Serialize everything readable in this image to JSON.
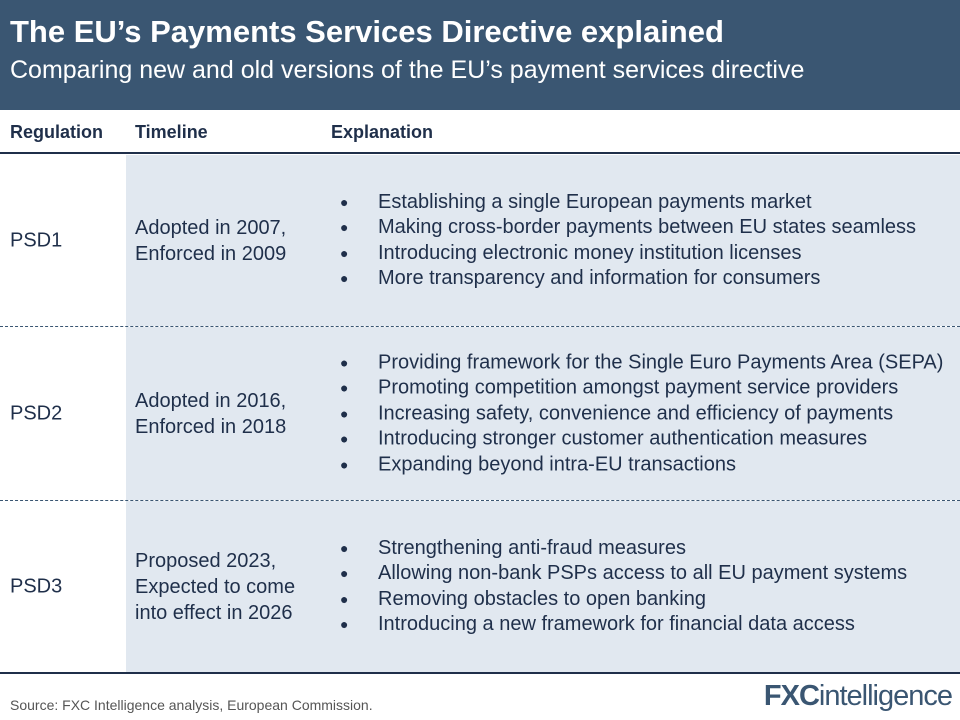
{
  "header": {
    "title": "The EU’s Payments Services Directive explained",
    "subtitle": "Comparing new and old versions of the EU’s payment services directive"
  },
  "columns": {
    "regulation": "Regulation",
    "timeline": "Timeline",
    "explanation": "Explanation"
  },
  "rows": [
    {
      "regulation": "PSD1",
      "timeline": [
        "Adopted in 2007,",
        "Enforced in 2009"
      ],
      "points": [
        "Establishing a single European payments market",
        "Making cross-border payments between EU states seamless",
        "Introducing electronic money institution licenses",
        "More transparency and information for consumers"
      ]
    },
    {
      "regulation": "PSD2",
      "timeline": [
        "Adopted in 2016,",
        "Enforced in 2018"
      ],
      "points": [
        "Providing framework for the Single Euro Payments Area (SEPA)",
        "Promoting competition amongst payment service providers",
        "Increasing safety, convenience and efficiency of payments",
        "Introducing stronger customer authentication measures",
        "Expanding beyond intra-EU transactions"
      ]
    },
    {
      "regulation": "PSD3",
      "timeline": [
        "Proposed 2023,",
        "Expected to come",
        "into effect in 2026"
      ],
      "points": [
        "Strengthening anti-fraud measures",
        "Allowing non-bank PSPs access to all EU payment systems",
        "Removing obstacles to open banking",
        "Introducing a new framework for financial data access"
      ]
    }
  ],
  "footer": {
    "source": "Source: FXC Intelligence analysis, European Commission.",
    "logo": "FXCintelligence"
  },
  "colors": {
    "header_bg": "#3a5672",
    "shade": "#e1e8f0",
    "text": "#1f2f4a"
  }
}
